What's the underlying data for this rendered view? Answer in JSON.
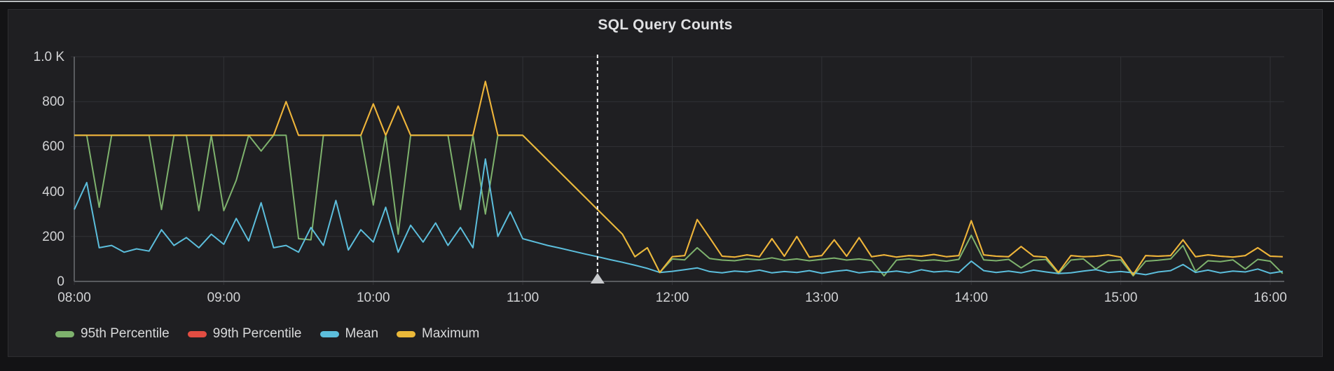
{
  "panel": {
    "title": "SQL Query Counts"
  },
  "colors": {
    "panel_bg": "#1f1f22",
    "page_bg": "#131315",
    "grid": "#303236",
    "axis": "#595b5f",
    "tick_text": "#d2d3d5",
    "series_green": "#7EB26D",
    "series_red": "#E24D42",
    "series_cyan": "#5CBEDC",
    "series_orange": "#EAB839",
    "annotation_line": "#ffffff",
    "annotation_marker": "#c9cbce"
  },
  "legend": [
    {
      "label": "95th Percentile",
      "color": "#7EB26D"
    },
    {
      "label": "99th Percentile",
      "color": "#E24D42"
    },
    {
      "label": "Mean",
      "color": "#5CBEDC"
    },
    {
      "label": "Maximum",
      "color": "#EAB839"
    }
  ],
  "axes": {
    "y": {
      "min": 0,
      "max": 1000,
      "ticks": [
        {
          "value": 0,
          "label": "0"
        },
        {
          "value": 200,
          "label": "200"
        },
        {
          "value": 400,
          "label": "400"
        },
        {
          "value": 600,
          "label": "600"
        },
        {
          "value": 800,
          "label": "800"
        },
        {
          "value": 1000,
          "label": "1.0 K"
        }
      ]
    },
    "x": {
      "ticks": [
        {
          "min": 480,
          "label": "08:00"
        },
        {
          "min": 540,
          "label": "09:00"
        },
        {
          "min": 600,
          "label": "10:00"
        },
        {
          "min": 660,
          "label": "11:00"
        },
        {
          "min": 720,
          "label": "12:00"
        },
        {
          "min": 780,
          "label": "13:00"
        },
        {
          "min": 840,
          "label": "14:00"
        },
        {
          "min": 900,
          "label": "15:00"
        },
        {
          "min": 960,
          "label": "16:00"
        }
      ]
    }
  },
  "annotation": {
    "time_label": "11:30",
    "time_min": 690,
    "line_color": "#ffffff",
    "marker_color": "#c9cbce",
    "marker": "triangle"
  },
  "chart_data": {
    "type": "line",
    "title": "SQL Query Counts",
    "xlabel": "",
    "ylabel": "",
    "ylim": [
      0,
      1000
    ],
    "x_range": [
      "08:00",
      "16:05"
    ],
    "grid": true,
    "legend_position": "bottom",
    "x_minutes": [
      480,
      485,
      490,
      495,
      500,
      505,
      510,
      515,
      520,
      525,
      530,
      535,
      540,
      545,
      550,
      555,
      560,
      565,
      570,
      575,
      580,
      585,
      590,
      595,
      600,
      605,
      610,
      615,
      620,
      625,
      630,
      635,
      640,
      645,
      650,
      655,
      660,
      665,
      670,
      675,
      680,
      685,
      690,
      695,
      700,
      705,
      710,
      715,
      720,
      725,
      730,
      735,
      740,
      745,
      750,
      755,
      760,
      765,
      770,
      775,
      780,
      785,
      790,
      795,
      800,
      805,
      810,
      815,
      820,
      825,
      830,
      835,
      840,
      845,
      850,
      855,
      860,
      865,
      870,
      875,
      880,
      885,
      890,
      895,
      900,
      905,
      910,
      915,
      920,
      925,
      930,
      935,
      940,
      945,
      950,
      955,
      960,
      965
    ],
    "series": [
      {
        "name": "95th Percentile",
        "color": "#7EB26D",
        "values": [
          650,
          650,
          330,
          650,
          650,
          650,
          650,
          320,
          650,
          650,
          315,
          650,
          315,
          450,
          650,
          580,
          650,
          650,
          190,
          185,
          650,
          650,
          650,
          650,
          340,
          650,
          210,
          650,
          650,
          650,
          650,
          320,
          650,
          300,
          650,
          650,
          650,
          595,
          540,
          485,
          430,
          375,
          320,
          265,
          210,
          110,
          150,
          40,
          100,
          96,
          150,
          102,
          95,
          92,
          100,
          96,
          105,
          94,
          100,
          92,
          98,
          104,
          95,
          100,
          93,
          25,
          95,
          100,
          92,
          96,
          90,
          98,
          205,
          96,
          92,
          98,
          60,
          94,
          98,
          35,
          95,
          100,
          55,
          92,
          96,
          25,
          90,
          94,
          100,
          160,
          45,
          92,
          88,
          96,
          55,
          98,
          90,
          35
        ]
      },
      {
        "name": "99th Percentile",
        "color": "#E24D42",
        "hidden_behind": "Maximum",
        "values": [
          650,
          650,
          650,
          650,
          650,
          650,
          650,
          650,
          650,
          650,
          650,
          650,
          650,
          650,
          650,
          650,
          650,
          800,
          650,
          650,
          650,
          650,
          650,
          650,
          790,
          650,
          780,
          650,
          650,
          650,
          650,
          650,
          650,
          890,
          650,
          650,
          650,
          595,
          540,
          485,
          430,
          375,
          320,
          265,
          210,
          110,
          150,
          40,
          110,
          115,
          275,
          195,
          112,
          108,
          118,
          110,
          190,
          112,
          200,
          108,
          115,
          185,
          112,
          195,
          110,
          118,
          108,
          115,
          112,
          120,
          110,
          115,
          270,
          118,
          112,
          110,
          155,
          112,
          108,
          40,
          115,
          110,
          112,
          118,
          108,
          30,
          115,
          112,
          115,
          185,
          110,
          118,
          112,
          108,
          115,
          150,
          112,
          110
        ]
      },
      {
        "name": "Mean",
        "color": "#5CBEDC",
        "values": [
          320,
          440,
          150,
          160,
          130,
          145,
          135,
          230,
          160,
          195,
          150,
          210,
          165,
          280,
          180,
          350,
          150,
          160,
          130,
          240,
          160,
          360,
          140,
          230,
          175,
          330,
          130,
          250,
          175,
          260,
          160,
          240,
          150,
          545,
          200,
          310,
          190,
          175,
          160,
          148,
          135,
          122,
          110,
          97,
          85,
          72,
          58,
          40,
          45,
          52,
          60,
          44,
          38,
          46,
          42,
          50,
          38,
          44,
          40,
          48,
          36,
          45,
          50,
          38,
          44,
          40,
          46,
          38,
          52,
          42,
          46,
          40,
          90,
          48,
          40,
          46,
          38,
          50,
          42,
          35,
          38,
          46,
          52,
          40,
          44,
          38,
          30,
          42,
          48,
          75,
          40,
          50,
          38,
          46,
          42,
          55,
          36,
          45
        ]
      },
      {
        "name": "Maximum",
        "color": "#EAB839",
        "values": [
          650,
          650,
          650,
          650,
          650,
          650,
          650,
          650,
          650,
          650,
          650,
          650,
          650,
          650,
          650,
          650,
          650,
          800,
          650,
          650,
          650,
          650,
          650,
          650,
          790,
          650,
          780,
          650,
          650,
          650,
          650,
          650,
          650,
          890,
          650,
          650,
          650,
          595,
          540,
          485,
          430,
          375,
          320,
          265,
          210,
          110,
          150,
          40,
          110,
          115,
          275,
          195,
          112,
          108,
          118,
          110,
          190,
          112,
          200,
          108,
          115,
          185,
          112,
          195,
          110,
          118,
          108,
          115,
          112,
          120,
          110,
          115,
          270,
          118,
          112,
          110,
          155,
          112,
          108,
          40,
          115,
          110,
          112,
          118,
          108,
          30,
          115,
          112,
          115,
          185,
          110,
          118,
          112,
          108,
          115,
          150,
          112,
          110
        ]
      }
    ]
  }
}
